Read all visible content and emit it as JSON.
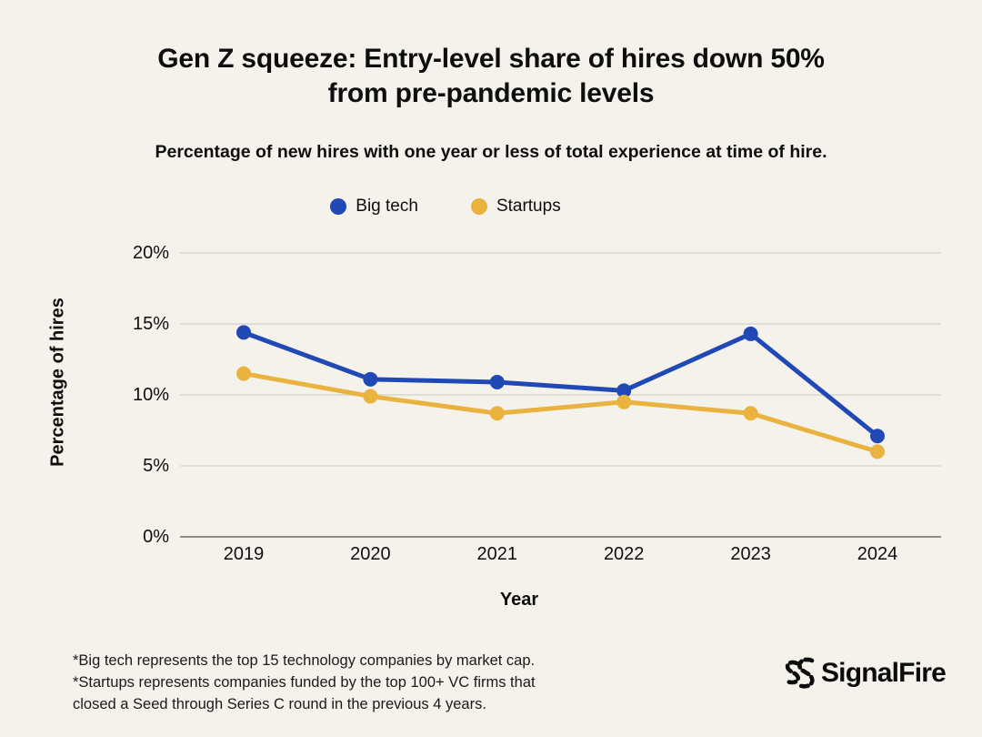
{
  "page": {
    "background": "#f5f2ec"
  },
  "chart_data": {
    "type": "line",
    "title": "Gen Z squeeze: Entry-level share of hires down 50% from pre-pandemic levels",
    "title_lines": [
      "Gen Z squeeze: Entry-level share of hires down 50%",
      "from pre-pandemic levels"
    ],
    "subtitle": "Percentage of new hires with one year or less of total experience at time of hire.",
    "xlabel": "Year",
    "ylabel": "Percentage of hires",
    "categories": [
      "2019",
      "2020",
      "2021",
      "2022",
      "2023",
      "2024"
    ],
    "series": [
      {
        "name": "Big tech",
        "color": "#2149b5",
        "values": [
          14.4,
          11.1,
          10.9,
          10.3,
          14.3,
          7.1
        ]
      },
      {
        "name": "Startups",
        "color": "#eab23e",
        "values": [
          11.5,
          9.9,
          8.7,
          9.5,
          8.7,
          6.0
        ]
      }
    ],
    "ylim": [
      0,
      20
    ],
    "y_tick_values": [
      20,
      15,
      10,
      5,
      0
    ],
    "y_tick_labels": [
      "20%",
      "15%",
      "10%",
      "5%",
      "0%"
    ],
    "grid": true,
    "legend_position": "top-center"
  },
  "footer": {
    "footnote_lines": [
      "*Big tech represents the top 15 technology companies by market cap.",
      "*Startups represents companies funded by the top 100+ VC firms that",
      "closed a Seed through Series C round in the previous 4 years."
    ],
    "logo_text": "SignalFire"
  },
  "colors": {
    "background": "#f5f2ec",
    "big_tech": "#2149b5",
    "startups": "#eab23e",
    "gridline": "#d9d6d0",
    "axis_line": "#908d87",
    "text": "#0e0e0e"
  }
}
